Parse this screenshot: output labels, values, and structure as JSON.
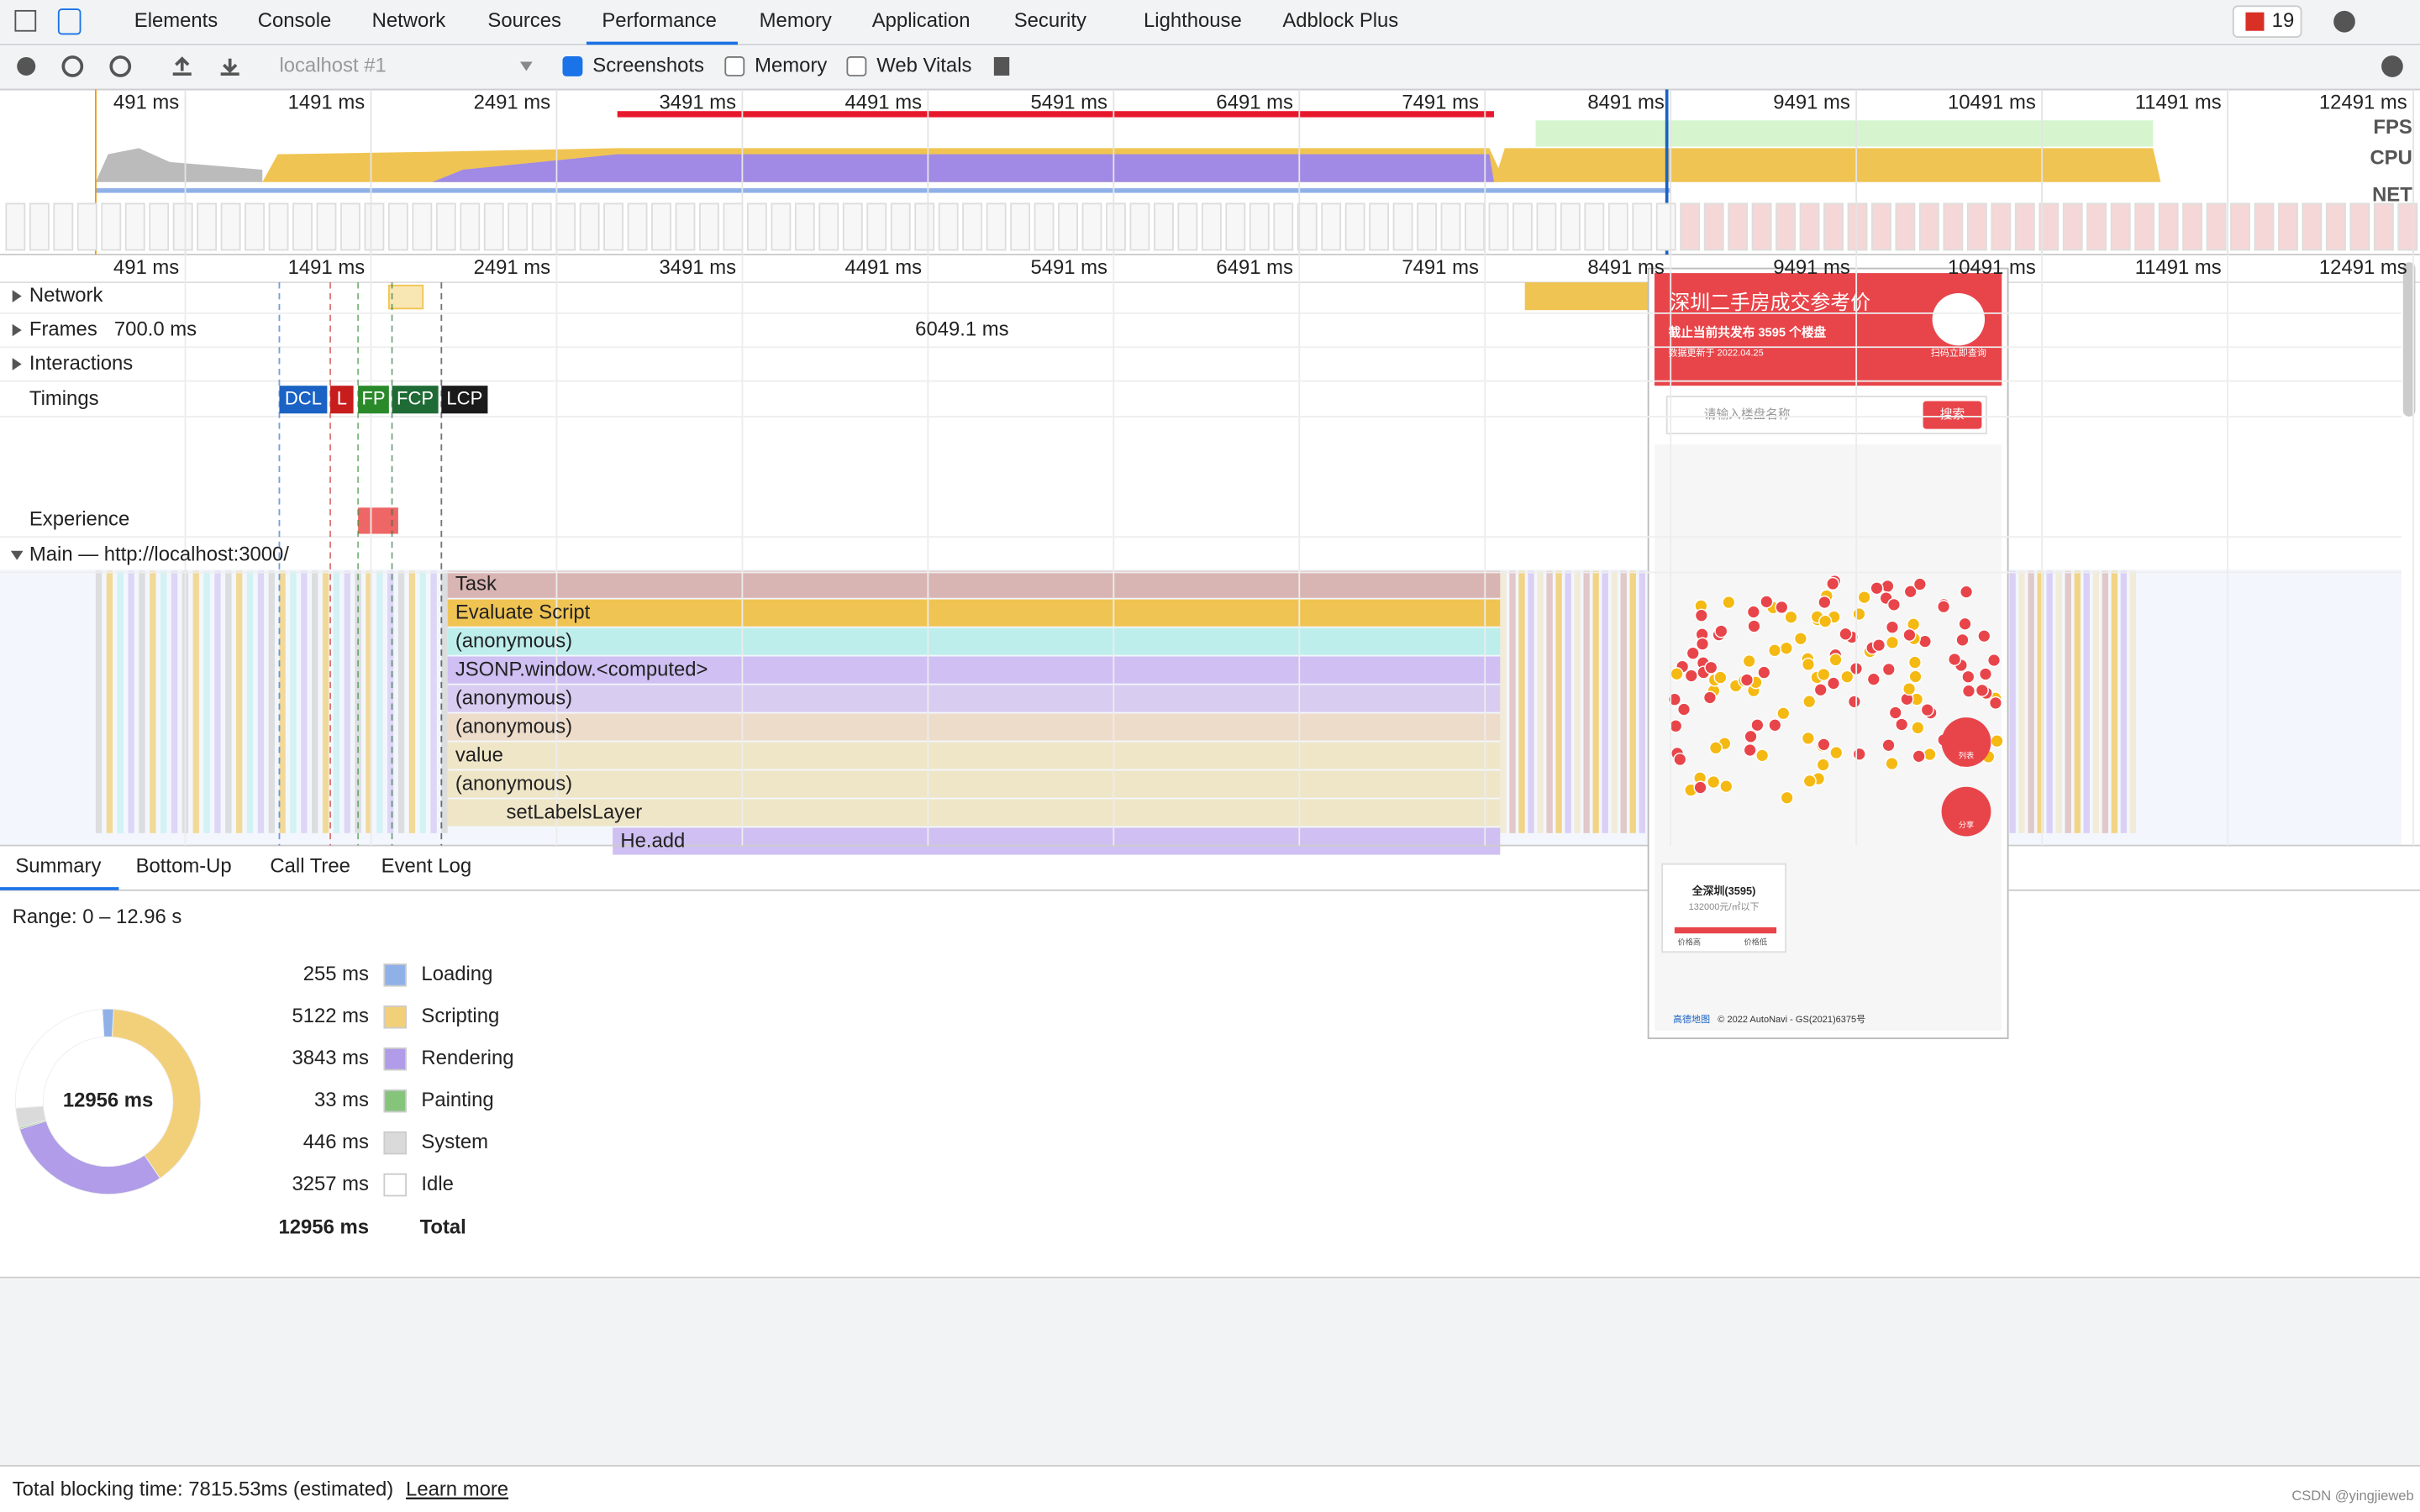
{
  "tabs": [
    "Elements",
    "Console",
    "Network",
    "Sources",
    "Performance",
    "Memory",
    "Application",
    "Security",
    "Lighthouse",
    "Adblock Plus"
  ],
  "error_count": "19",
  "toolbar": {
    "target": "localhost #1",
    "checkboxes": [
      {
        "label": "Screenshots",
        "checked": true
      },
      {
        "label": "Memory",
        "checked": false
      },
      {
        "label": "Web Vitals",
        "checked": false
      }
    ]
  },
  "timeline": {
    "ticks": [
      {
        "value": 491,
        "label": "491 ms"
      },
      {
        "value": 1491,
        "label": "1491 ms"
      },
      {
        "value": 2491,
        "label": "2491 ms"
      },
      {
        "value": 3491,
        "label": "3491 ms"
      },
      {
        "value": 4491,
        "label": "4491 ms"
      },
      {
        "value": 5491,
        "label": "5491 ms"
      },
      {
        "value": 6491,
        "label": "6491 ms"
      },
      {
        "value": 7491,
        "label": "7491 ms"
      },
      {
        "value": 8491,
        "label": "8491 ms"
      },
      {
        "value": 9491,
        "label": "9491 ms"
      },
      {
        "value": 10491,
        "label": "10491 ms"
      },
      {
        "value": 11491,
        "label": "11491 ms"
      },
      {
        "value": 12491,
        "label": "12491 ms"
      }
    ],
    "overview_labels": [
      "FPS",
      "CPU",
      "NET"
    ],
    "tracks": [
      "Network",
      "Frames",
      "Interactions",
      "Timings",
      "Experience",
      "Main — http://localhost:3000/"
    ],
    "frames": [
      "700.0 ms",
      "6049.1 ms"
    ],
    "timings": [
      "DCL",
      "L",
      "FP",
      "FCP",
      "LCP"
    ],
    "flame": [
      "Task",
      "Evaluate Script",
      "(anonymous)",
      "JSONP.window.<computed>",
      "(anonymous)",
      "(anonymous)",
      "value",
      "(anonymous)",
      "setLabelsLayer",
      "He.add"
    ]
  },
  "bottom_tabs": [
    "Summary",
    "Bottom-Up",
    "Call Tree",
    "Event Log"
  ],
  "range": "Range: 0 – 12.96 s",
  "summary": {
    "type": "pie",
    "categories": [
      "Loading",
      "Scripting",
      "Rendering",
      "Painting",
      "System",
      "Idle"
    ],
    "values": [
      255,
      5122,
      3843,
      33,
      446,
      3257
    ],
    "value_labels": [
      "255 ms",
      "5122 ms",
      "3843 ms",
      "33 ms",
      "446 ms",
      "3257 ms"
    ],
    "colors": [
      "#8fb1e8",
      "#f2cf79",
      "#b09ce8",
      "#86c47c",
      "#dadada",
      "#ffffff"
    ],
    "total": {
      "label": "Total",
      "value": 12956,
      "value_label": "12956 ms"
    }
  },
  "footer": {
    "text": "Total blocking time: 7815.53ms (estimated)",
    "link": "Learn more"
  },
  "watermark": "CSDN @yingjieweb",
  "preview": {
    "title": "深圳二手房成交参考价",
    "subtitle": "截止当前共发布 3595 个楼盘",
    "updated": "数据更新于 2022.04.25",
    "qr": "扫码立即查询",
    "search_placeholder": "请输入楼盘名称",
    "search_button": "搜索",
    "list": "列表",
    "share": "分享",
    "legend_title": "全深圳(3595)",
    "legend_sub": "132000元/㎡以下",
    "legend_high": "价格高",
    "legend_low": "价格低",
    "map_logo": "高德地图",
    "copyright": "© 2022 AutoNavi - GS(2021)6375号"
  }
}
